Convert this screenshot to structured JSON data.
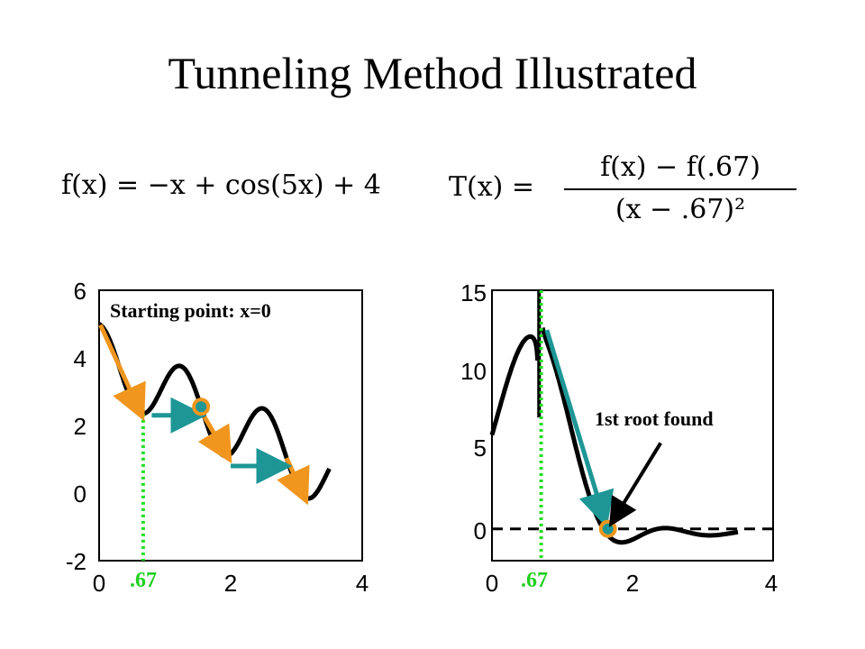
{
  "title": "Tunneling Method Illustrated",
  "formulas": {
    "f": "f(x) = −x + cos(5x) + 4",
    "T_lhs": "T(x) =",
    "T_numerator": "f(x) − f(.67)",
    "T_denominator": "(x − .67)²"
  },
  "colors": {
    "curve": "#000000",
    "orange": "#f0961e",
    "teal": "#1e9696",
    "green": "#22dd22"
  },
  "chart_data": [
    {
      "type": "line",
      "series": [
        {
          "x": [
            0,
            0.2,
            0.4,
            0.6,
            0.67,
            0.8,
            1.0,
            1.2,
            1.3,
            1.5,
            1.7,
            1.9,
            2.1,
            2.3,
            2.5,
            2.7,
            2.9,
            3.1,
            3.3,
            3.5
          ],
          "y": [
            5.0,
            4.34,
            3.18,
            2.41,
            2.36,
            2.52,
            3.28,
            3.77,
            3.64,
            2.85,
            1.94,
            1.1,
            1.41,
            2.06,
            2.5,
            1.89,
            0.98,
            0.26,
            0.59,
            0.7
          ]
        }
      ],
      "xlim": [
        0,
        4
      ],
      "ylim": [
        -2,
        6
      ],
      "xticks": [
        "0",
        "2",
        "4"
      ],
      "yticks": [
        "-2",
        "0",
        "2",
        "4",
        "6"
      ],
      "annotations": {
        "start": "Starting point: x=0",
        "marker": ".67"
      }
    },
    {
      "type": "line",
      "series": [
        {
          "x": [
            0,
            0.2,
            0.4,
            0.55,
            0.65,
            0.72,
            0.85,
            1.0,
            1.2,
            1.4,
            1.6,
            1.8,
            2.0,
            2.2,
            2.4,
            2.6,
            2.8,
            3.0,
            3.2,
            3.5
          ],
          "y": [
            6.0,
            9.5,
            11.8,
            11.5,
            9.8,
            13.0,
            11.0,
            8.0,
            4.0,
            1.5,
            0.0,
            -0.4,
            -0.2,
            0.1,
            0.4,
            0.2,
            0.0,
            -0.1,
            0.0,
            0.2
          ]
        }
      ],
      "xlim": [
        0,
        4
      ],
      "ylim": [
        -2,
        15
      ],
      "xticks": [
        "0",
        "2",
        "4"
      ],
      "yticks": [
        "0",
        "5",
        "10",
        "15"
      ],
      "annotations": {
        "root": "1st root found",
        "marker": ".67"
      }
    }
  ]
}
